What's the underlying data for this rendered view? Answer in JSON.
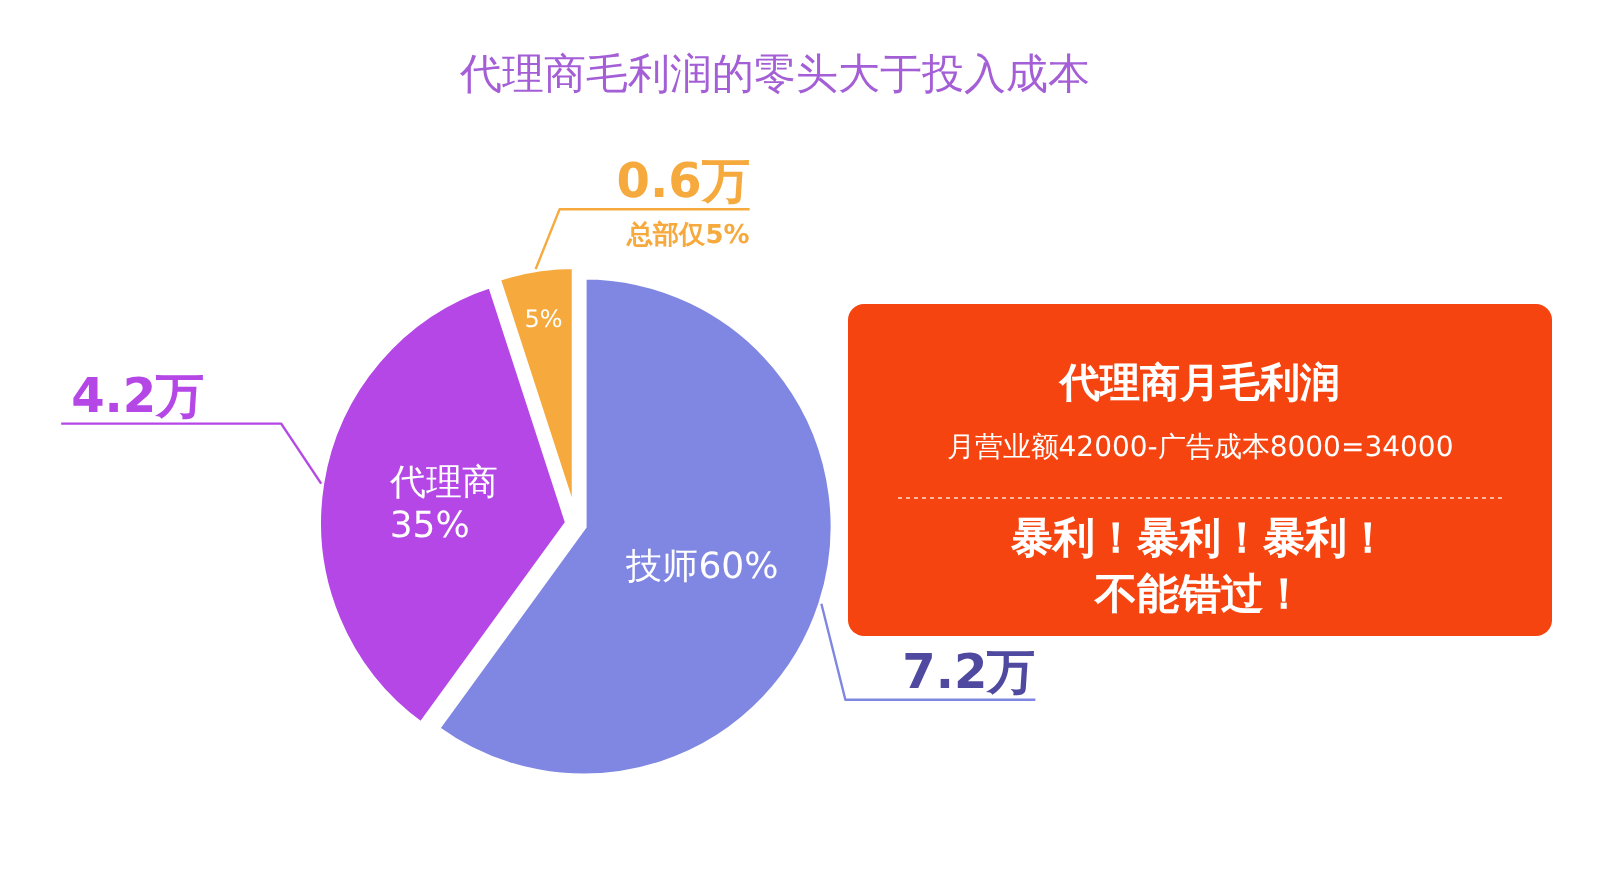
{
  "chart_data": [
    {
      "type": "pie",
      "title": "代理商毛利润的零头大于投入成本",
      "categories": [
        "技师",
        "代理商",
        null
      ],
      "values": [
        60,
        35,
        5
      ],
      "colors": [
        "#7f87e2",
        "#b447e6",
        "#f6a93c"
      ],
      "value_labels": [
        "60%",
        "35%",
        "5%"
      ],
      "annotations": [
        "7.2万",
        "4.2万",
        "0.6万",
        "总部仅5%"
      ]
    },
    {
      "type": "other",
      "title": "代理商月毛利润",
      "subtitle": "月营业额42000-广告成本8000=34000",
      "annotations": [
        "暴利！暴利！暴利！",
        "不能错过！"
      ]
    }
  ]
}
